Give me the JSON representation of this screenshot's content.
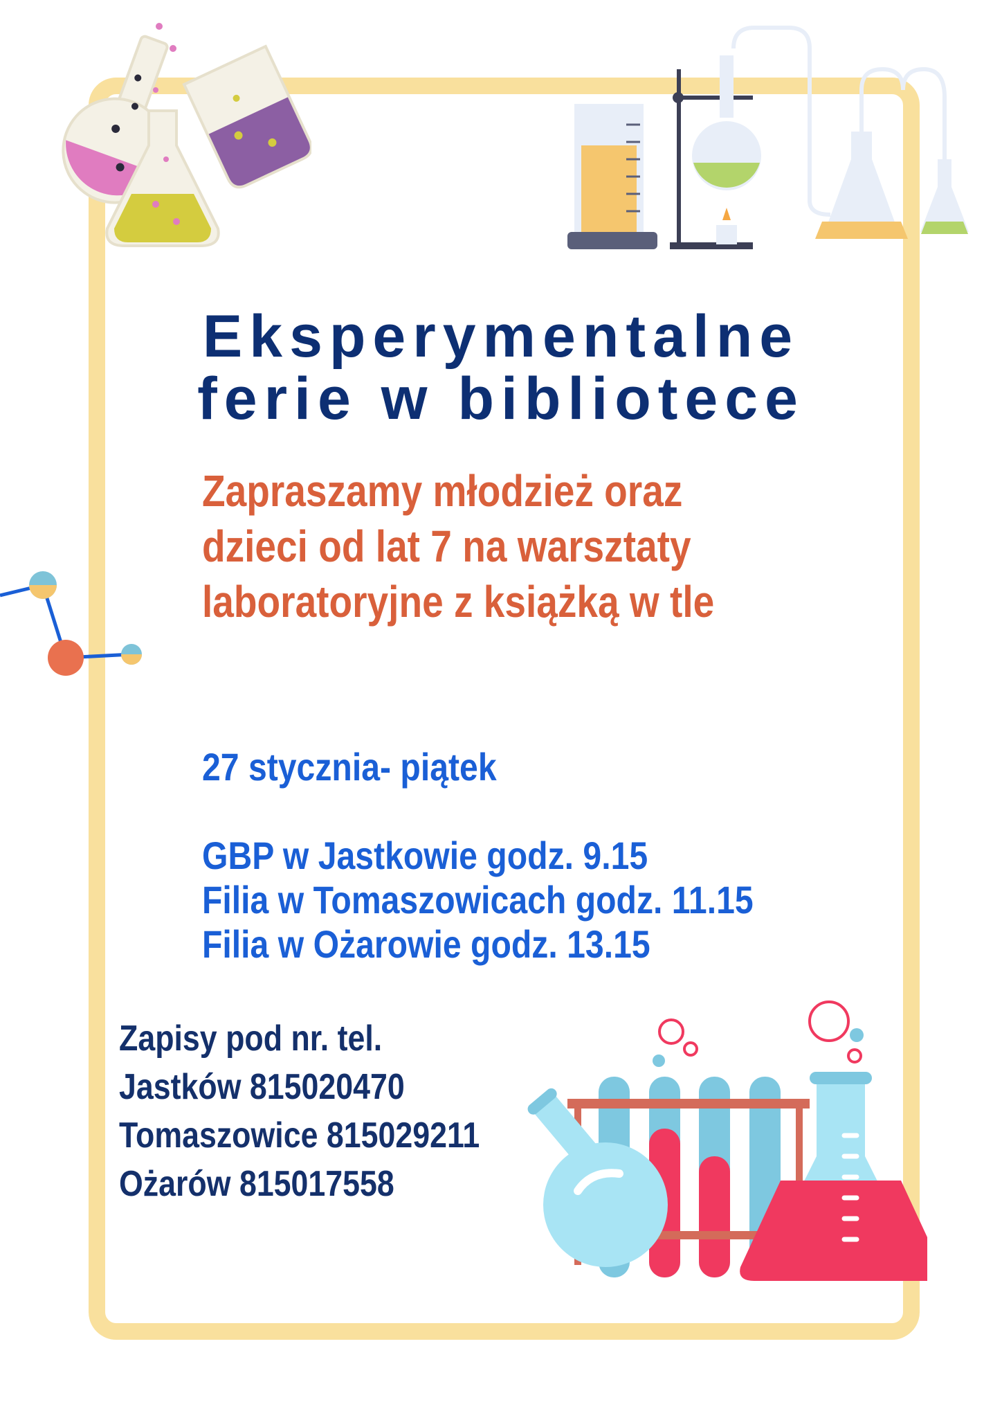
{
  "title": {
    "line1": "Eksperymentalne",
    "line2": "ferie w bibliotece"
  },
  "invitation": [
    "Zapraszamy  młodzież  oraz",
    "dzieci od lat 7 na warsztaty",
    "laboratoryjne z książką w tle"
  ],
  "date": "27 stycznia- piątek",
  "schedule": [
    "GBP w Jastkowie godz. 9.15",
    "Filia w Tomaszowicach godz. 11.15",
    "Filia w Ożarowie godz. 13.15"
  ],
  "registration": {
    "heading": "Zapisy pod nr. tel.",
    "phones": [
      " Jastków 815020470",
      "Tomaszowice 815029211",
      "Ożarów 815017558"
    ]
  },
  "colors": {
    "frame": "#f9e09d",
    "title": "#0d2f73",
    "invitation": "#d9603b",
    "schedule": "#1a5fd6",
    "registration": "#14306b"
  }
}
